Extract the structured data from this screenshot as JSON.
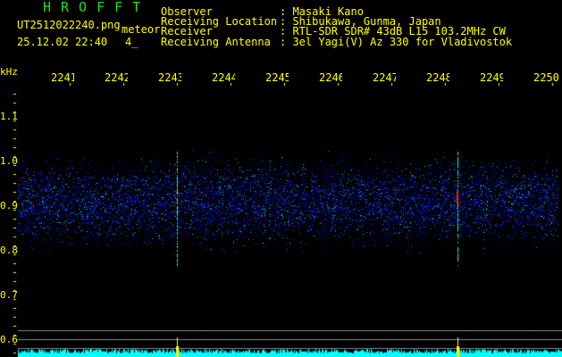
{
  "header": {
    "brand": "HROFFT",
    "filename": "UT2512022240.png",
    "mode": "meteor",
    "datetime": "25.12.02 22:40",
    "count": "4_",
    "info": [
      {
        "label": "Observer",
        "value": "Masaki Kano"
      },
      {
        "label": "Receiving Location",
        "value": "Shibukawa, Gunma, Japan"
      },
      {
        "label": "Receiver",
        "value": "RTL-SDR SDR# 43dB L15 103.2MHz CW"
      },
      {
        "label": "Receiving Antenna",
        "value": "3el Yagi(V) Az 330 for Vladivostok"
      }
    ]
  },
  "axes": {
    "y_unit": "kHz",
    "y_ticks": [
      "1.1",
      "1.0",
      "0.9",
      "0.8",
      "0.7",
      "0.6"
    ],
    "x_ticks": [
      "2241",
      "2242",
      "2243",
      "2244",
      "2245",
      "2246",
      "2247",
      "2248",
      "2249",
      "2250"
    ]
  },
  "colors": {
    "text": "#ffff00",
    "brand": "#22dd22",
    "trace": "#00ffff",
    "spike": "#ffff00"
  },
  "meteor_times": [
    "2243",
    "2248"
  ]
}
